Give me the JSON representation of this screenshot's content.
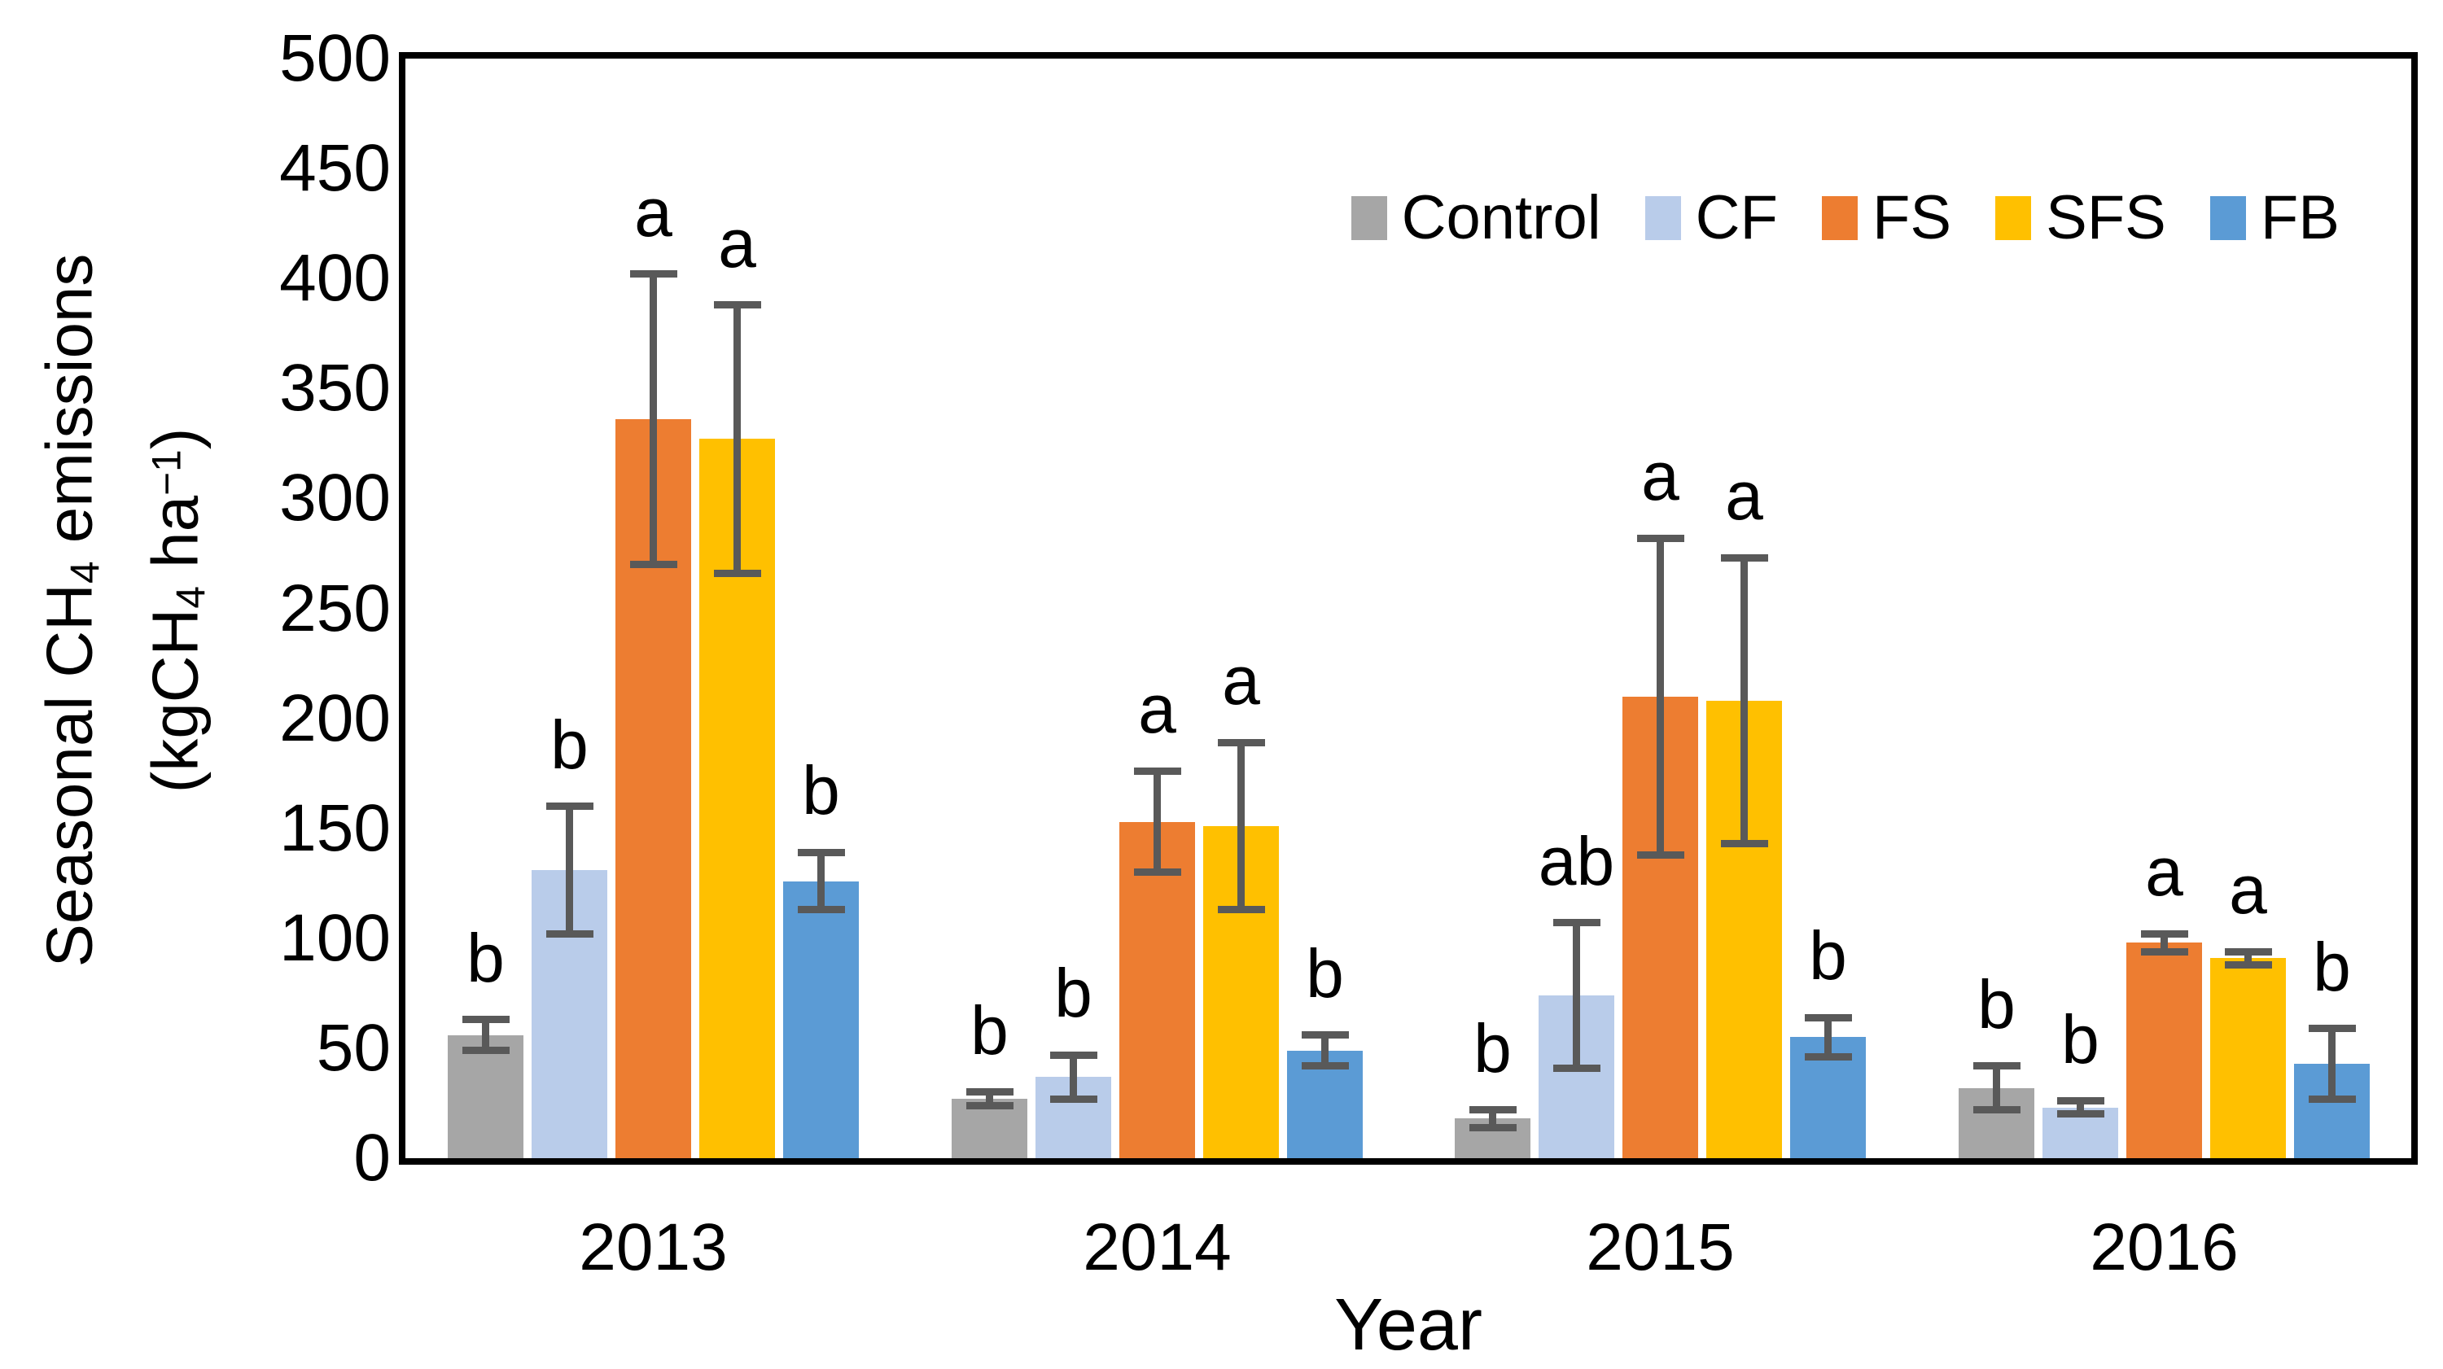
{
  "chart_data": {
    "type": "bar",
    "title": "",
    "xlabel": "Year",
    "ylabel_lines": [
      [
        {
          "t": "Seasonal CH"
        },
        {
          "t": "4",
          "s": "sub"
        },
        {
          "t": " emissions"
        }
      ],
      [
        {
          "t": "(kgCH"
        },
        {
          "t": "4",
          "s": "sub"
        },
        {
          "t": " ha"
        },
        {
          "t": "−1",
          "s": "sup"
        },
        {
          "t": ")"
        }
      ]
    ],
    "categories": [
      "2013",
      "2014",
      "2015",
      "2016"
    ],
    "series": [
      {
        "name": "Control",
        "color": "#A6A6A6",
        "values": [
          56,
          27,
          18,
          32
        ],
        "errors": [
          7,
          3,
          4,
          10
        ],
        "letters": [
          "b",
          "b",
          "b",
          "b"
        ]
      },
      {
        "name": "CF",
        "color": "#B9CCEA",
        "values": [
          131,
          37,
          74,
          23
        ],
        "errors": [
          29,
          10,
          33,
          3
        ],
        "letters": [
          "b",
          "b",
          "ab",
          "b"
        ]
      },
      {
        "name": "FS",
        "color": "#ED7D31",
        "values": [
          336,
          153,
          210,
          98
        ],
        "errors": [
          66,
          23,
          72,
          4
        ],
        "letters": [
          "a",
          "a",
          "a",
          "a"
        ]
      },
      {
        "name": "SFS",
        "color": "#FFC000",
        "values": [
          327,
          151,
          208,
          91
        ],
        "errors": [
          61,
          38,
          65,
          3
        ],
        "letters": [
          "a",
          "a",
          "a",
          "a"
        ]
      },
      {
        "name": "FB",
        "color": "#5B9BD5",
        "values": [
          126,
          49,
          55,
          43
        ],
        "errors": [
          13,
          7,
          9,
          16
        ],
        "letters": [
          "b",
          "b",
          "b",
          "b"
        ]
      }
    ],
    "ylim": [
      0,
      500
    ],
    "ytick_step": 50,
    "grid": false,
    "legend_position": "top-right-inside",
    "axis_color": "#000000",
    "error_bar_color": "#595959",
    "text_color": "#000000"
  }
}
